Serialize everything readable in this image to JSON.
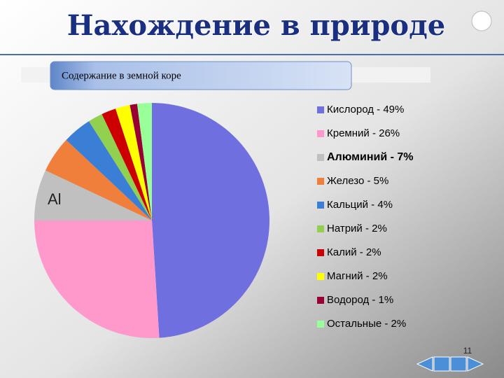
{
  "header": {
    "title": "Нахождение в природе"
  },
  "chart_data": {
    "type": "pie",
    "title": "Содержание в земной коре",
    "categories": [
      "Кислород - 49%",
      "Кремний - 26%",
      "Алюминий - 7%",
      "Железо - 5%",
      "Кальций - 4%",
      "Натрий - 2%",
      "Калий - 2%",
      "Магний - 2%",
      "Водород - 1%",
      "Остальные - 2%"
    ],
    "values": [
      49,
      26,
      7,
      5,
      4,
      2,
      2,
      2,
      1,
      2
    ],
    "colors": [
      "#6f6fdf",
      "#ff99cc",
      "#c0c0c0",
      "#f07f3c",
      "#3a7fd5",
      "#92d050",
      "#cc0000",
      "#ffff00",
      "#990033",
      "#99ff99"
    ],
    "annotation": "Al"
  },
  "page_number": "11"
}
